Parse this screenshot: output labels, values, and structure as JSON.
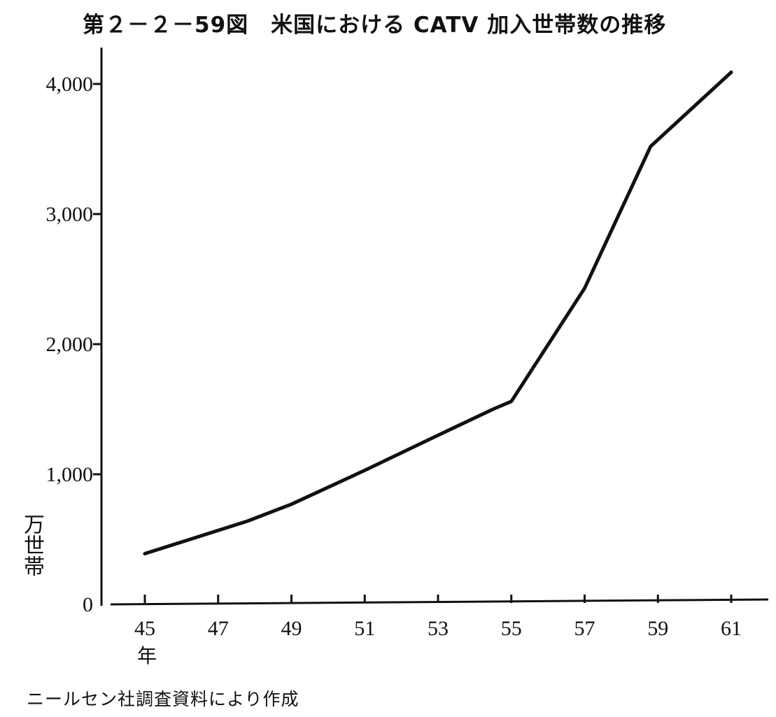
{
  "header": {
    "title": "第２－２－59図　米国における CATV 加入世帯数の推移"
  },
  "footer": {
    "source": "ニールセン社調査資料により作成"
  },
  "chart_data": {
    "type": "line",
    "title": "第２－２－59図　米国における CATV 加入世帯数の推移",
    "xlabel": "",
    "ylabel": "万世帯",
    "x_unit_label": "年",
    "ylim": [
      0,
      4000
    ],
    "xlim": [
      45,
      61
    ],
    "y_ticks": [
      0,
      1000,
      2000,
      3000,
      4000
    ],
    "y_tick_labels": [
      "0",
      "1,000",
      "2,000",
      "3,000",
      "4,000"
    ],
    "x_ticks": [
      45,
      47,
      49,
      51,
      53,
      55,
      57,
      59,
      61
    ],
    "x_tick_labels": [
      "45",
      "47",
      "49",
      "51",
      "53",
      "55",
      "57",
      "59",
      "61"
    ],
    "grid": false,
    "legend": "none",
    "series": [
      {
        "x": [
          45,
          47.8,
          49,
          51,
          53,
          54.5,
          55,
          57,
          58.8,
          61
        ],
        "values": [
          390,
          640,
          770,
          1030,
          1300,
          1500,
          1560,
          2430,
          3520,
          4090
        ]
      }
    ]
  }
}
